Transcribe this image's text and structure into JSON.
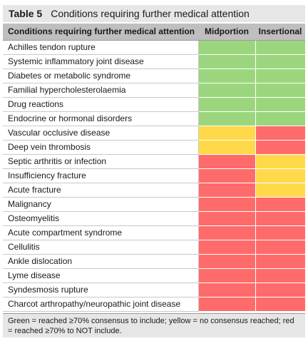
{
  "title": {
    "number": "Table 5",
    "text": "Conditions requiring further medical attention"
  },
  "headers": {
    "condition": "Conditions requiring further medical attention",
    "midportion": "Midportion",
    "insertional": "Insertional"
  },
  "colors": {
    "green": "#9bd67f",
    "yellow": "#ffd94a",
    "red": "#ff6b6b"
  },
  "rows": [
    {
      "name": "Achilles tendon rupture",
      "midportion": "green",
      "insertional": "green"
    },
    {
      "name": "Systemic inflammatory joint disease",
      "midportion": "green",
      "insertional": "green"
    },
    {
      "name": "Diabetes or metabolic syndrome",
      "midportion": "green",
      "insertional": "green"
    },
    {
      "name": "Familial hypercholesterolaemia",
      "midportion": "green",
      "insertional": "green"
    },
    {
      "name": "Drug reactions",
      "midportion": "green",
      "insertional": "green"
    },
    {
      "name": "Endocrine or hormonal disorders",
      "midportion": "green",
      "insertional": "green"
    },
    {
      "name": "Vascular occlusive disease",
      "midportion": "yellow",
      "insertional": "red"
    },
    {
      "name": "Deep vein thrombosis",
      "midportion": "yellow",
      "insertional": "red"
    },
    {
      "name": "Septic arthritis or infection",
      "midportion": "red",
      "insertional": "yellow"
    },
    {
      "name": "Insufficiency fracture",
      "midportion": "red",
      "insertional": "yellow"
    },
    {
      "name": "Acute fracture",
      "midportion": "red",
      "insertional": "yellow"
    },
    {
      "name": "Malignancy",
      "midportion": "red",
      "insertional": "red"
    },
    {
      "name": "Osteomyelitis",
      "midportion": "red",
      "insertional": "red"
    },
    {
      "name": "Acute compartment syndrome",
      "midportion": "red",
      "insertional": "red"
    },
    {
      "name": "Cellulitis",
      "midportion": "red",
      "insertional": "red"
    },
    {
      "name": "Ankle dislocation",
      "midportion": "red",
      "insertional": "red"
    },
    {
      "name": "Lyme disease",
      "midportion": "red",
      "insertional": "red"
    },
    {
      "name": "Syndesmosis rupture",
      "midportion": "red",
      "insertional": "red"
    },
    {
      "name": "Charcot arthropathy/neuropathic joint disease",
      "midportion": "red",
      "insertional": "red"
    }
  ],
  "footnote": "Green = reached ≥70% consensus to include; yellow = no consensus reached; red = reached ≥70% to NOT include."
}
